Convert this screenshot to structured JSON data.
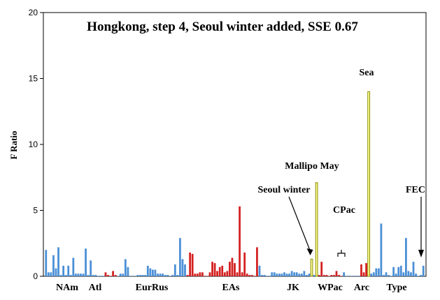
{
  "chart_data": {
    "type": "bar",
    "title": "Hongkong, step 4, Seoul winter added, SSE 0.67",
    "ylabel": "F Ratio",
    "xlabel": "",
    "ylim": [
      0,
      20
    ],
    "yticks": [
      "0",
      "5",
      "10",
      "15",
      "20"
    ],
    "grid": false,
    "legend": "none",
    "colors": {
      "blue": "#4a8fd6",
      "red": "#d42020",
      "yellow": "#ffff99",
      "yellow_edge": "#8a8a00"
    },
    "groups": [
      {
        "label": "NAm"
      },
      {
        "label": "Atl"
      },
      {
        "label": "EurRus"
      },
      {
        "label": "EAs"
      },
      {
        "label": "JK"
      },
      {
        "label": "WPac"
      },
      {
        "label": "Arc"
      },
      {
        "label": "Type"
      }
    ],
    "annotations": [
      {
        "text": "Seoul winter"
      },
      {
        "text": "Mallipo May"
      },
      {
        "text": "Sea"
      },
      {
        "text": "CPac"
      },
      {
        "text": "FEC"
      }
    ],
    "values": [
      2.0,
      0.3,
      0.3,
      1.6,
      0.6,
      2.2,
      0.1,
      0.8,
      0.1,
      0.8,
      0.1,
      1.4,
      0.2,
      0.2,
      0.2,
      0.2,
      2.1,
      0.1,
      1.2,
      0.1,
      0.1,
      0.0,
      0.0,
      0.0,
      0.3,
      0.1,
      0.0,
      0.4,
      0.1,
      0.0,
      0.2,
      0.2,
      1.3,
      0.7,
      0.0,
      0.0,
      0.0,
      0.1,
      0.1,
      0.1,
      0.1,
      0.8,
      0.6,
      0.5,
      0.5,
      0.2,
      0.2,
      0.2,
      0.1,
      0.1,
      0.0,
      0.1,
      0.9,
      0.1,
      2.9,
      1.3,
      0.9,
      0.1,
      1.8,
      1.7,
      0.2,
      0.2,
      0.3,
      0.3,
      0.0,
      0.0,
      0.3,
      1.1,
      1.0,
      0.4,
      0.7,
      0.8,
      0.3,
      0.4,
      1.1,
      1.4,
      1.0,
      0.3,
      5.3,
      0.3,
      1.8,
      0.2,
      0.1,
      0.1,
      0.0,
      2.2,
      0.8,
      0.1,
      0.1,
      0.0,
      0.0,
      0.3,
      0.3,
      0.2,
      0.2,
      0.2,
      0.3,
      0.2,
      0.2,
      0.4,
      0.3,
      0.3,
      0.2,
      0.2,
      0.4,
      0.1,
      0.2,
      1.3,
      0.1,
      7.1,
      0.1,
      1.1,
      0.1,
      0.1,
      0.0,
      0.1,
      0.1,
      0.4,
      0.1,
      0.0,
      0.3,
      0.0,
      0.0,
      0.0,
      0.0,
      0.0,
      0.0,
      0.9,
      0.3,
      1.0,
      14.0,
      0.2,
      0.3,
      0.6,
      0.6,
      4.0,
      0.1,
      0.3,
      0.1,
      0.0,
      0.7,
      0.2,
      0.7,
      0.8,
      0.3,
      2.9,
      0.4,
      0.3,
      1.1,
      0.2,
      0.0,
      0.1,
      0.8
    ],
    "bar_colors": [
      "blue",
      "blue",
      "blue",
      "blue",
      "blue",
      "blue",
      "blue",
      "blue",
      "blue",
      "blue",
      "blue",
      "blue",
      "blue",
      "blue",
      "blue",
      "blue",
      "blue",
      "blue",
      "blue",
      "blue",
      "blue",
      "blue",
      "blue",
      "blue",
      "red",
      "red",
      "red",
      "red",
      "red",
      "blue",
      "blue",
      "blue",
      "blue",
      "blue",
      "blue",
      "blue",
      "blue",
      "blue",
      "blue",
      "blue",
      "blue",
      "blue",
      "blue",
      "blue",
      "blue",
      "blue",
      "blue",
      "blue",
      "blue",
      "blue",
      "blue",
      "blue",
      "blue",
      "blue",
      "blue",
      "blue",
      "blue",
      "red",
      "red",
      "red",
      "red",
      "red",
      "red",
      "red",
      "red",
      "red",
      "red",
      "red",
      "red",
      "red",
      "red",
      "red",
      "red",
      "red",
      "red",
      "red",
      "red",
      "red",
      "red",
      "red",
      "red",
      "red",
      "red",
      "red",
      "red",
      "red",
      "blue",
      "blue",
      "blue",
      "blue",
      "blue",
      "blue",
      "blue",
      "blue",
      "blue",
      "blue",
      "blue",
      "blue",
      "blue",
      "blue",
      "blue",
      "blue",
      "blue",
      "blue",
      "blue",
      "blue",
      "blue",
      "yellow",
      "blue",
      "yellow",
      "red",
      "red",
      "red",
      "red",
      "red",
      "red",
      "red",
      "red",
      "red",
      "red",
      "blue",
      "blue",
      "blue",
      "blue",
      "blue",
      "blue",
      "blue",
      "red",
      "red",
      "red",
      "yellow",
      "blue",
      "blue",
      "blue",
      "blue",
      "blue",
      "blue",
      "blue",
      "blue",
      "blue",
      "blue",
      "blue",
      "blue",
      "blue",
      "blue",
      "blue",
      "blue",
      "blue",
      "blue",
      "blue",
      "blue",
      "blue",
      "blue"
    ]
  }
}
